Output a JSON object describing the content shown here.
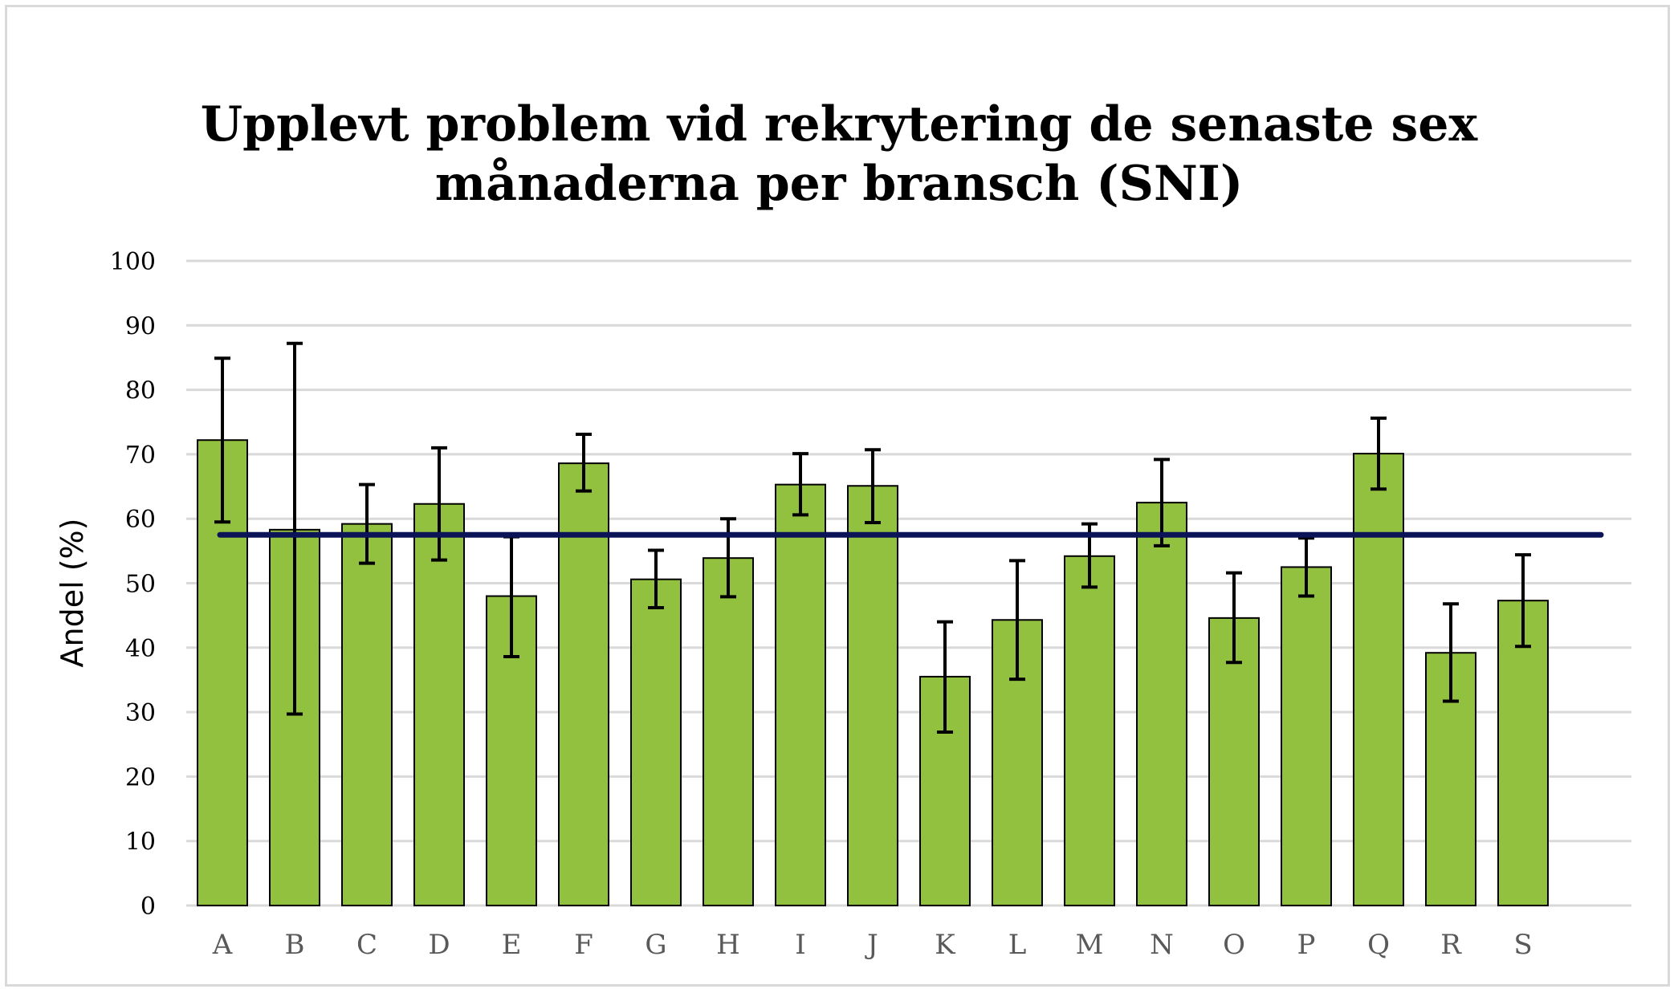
{
  "chart_data": {
    "type": "bar",
    "title": "Upplevt problem vid rekrytering de senaste sex månaderna per bransch (SNI)",
    "title_lines": [
      "Upplevt problem vid rekrytering de senaste sex",
      "månaderna per bransch (SNI)"
    ],
    "xlabel": "",
    "ylabel": "Andel (%)",
    "ylim": [
      0,
      100
    ],
    "yticks": [
      "0",
      "10",
      "20",
      "30",
      "40",
      "50",
      "60",
      "70",
      "80",
      "90",
      "100"
    ],
    "ytick_values": [
      0,
      10,
      20,
      30,
      40,
      50,
      60,
      70,
      80,
      90,
      100
    ],
    "grid": true,
    "categories": [
      "A",
      "B",
      "C",
      "D",
      "E",
      "F",
      "G",
      "H",
      "I",
      "J",
      "K",
      "L",
      "M",
      "N",
      "O",
      "P",
      "Q",
      "R",
      "S"
    ],
    "values": [
      72.2,
      58.3,
      59.2,
      62.3,
      48.0,
      68.6,
      50.6,
      53.9,
      65.3,
      65.1,
      35.5,
      44.3,
      54.2,
      62.5,
      44.6,
      52.5,
      70.1,
      39.2,
      47.3
    ],
    "error_low": [
      59.5,
      29.7,
      53.1,
      53.6,
      38.6,
      64.3,
      46.2,
      47.9,
      60.6,
      59.4,
      26.9,
      35.1,
      49.4,
      55.8,
      37.7,
      48.0,
      64.6,
      31.7,
      40.2
    ],
    "error_high": [
      84.9,
      87.2,
      65.3,
      71.0,
      57.2,
      73.1,
      55.1,
      60.0,
      70.1,
      70.7,
      44.0,
      53.5,
      59.2,
      69.2,
      51.6,
      57.0,
      75.6,
      46.8,
      54.4
    ],
    "reference_line": 57.5,
    "colors": {
      "bar_fill": "#92c03f",
      "bar_stroke": "#000000",
      "error_bar": "#000000",
      "reference_line": "#0b1456",
      "grid": "#d9d9d9",
      "axis": "#d9d9d9"
    }
  }
}
